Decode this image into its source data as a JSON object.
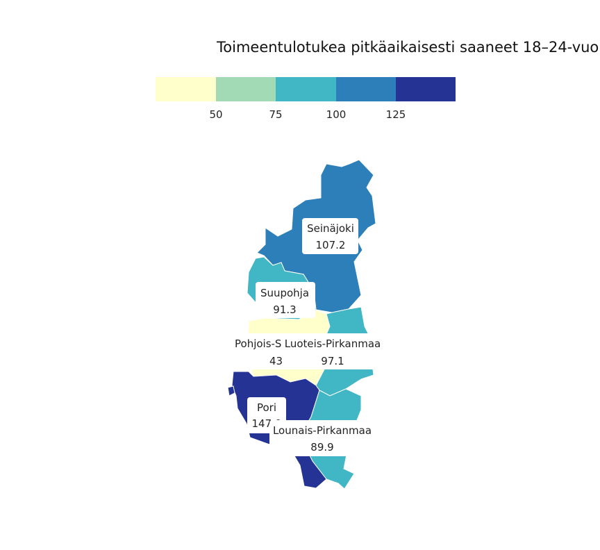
{
  "title": "Toimeentulotukea pitkäaikaisesti saaneet 18–24-vuo",
  "legend": {
    "colors": [
      "#ffffcc",
      "#a1dab4",
      "#41b6c4",
      "#2c7fb8",
      "#253494"
    ],
    "ticks": [
      "50",
      "75",
      "100",
      "125"
    ]
  },
  "regions": [
    {
      "name": "Seinäjoki",
      "value": "107.2",
      "color": "#2c7fb8"
    },
    {
      "name": "Suupohja",
      "value": "91.3",
      "color": "#41b6c4"
    },
    {
      "name": "Pohjois-S",
      "value": "43",
      "color": "#ffffcc"
    },
    {
      "name": "Luoteis-Pirkanmaa",
      "value": "97.1",
      "color": "#41b6c4"
    },
    {
      "name": "Pori",
      "value": "147.0",
      "color": "#253494"
    },
    {
      "name": "Lounais-Pirkanmaa",
      "value": "89.9",
      "color": "#41b6c4"
    }
  ]
}
